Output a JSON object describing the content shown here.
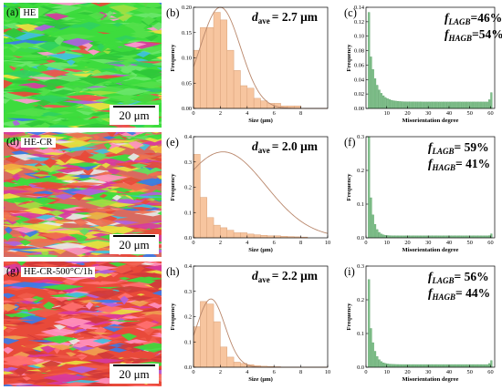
{
  "maps": [
    {
      "panel": "(a)",
      "name": "HE",
      "scale": "20 μm",
      "seed": 11,
      "tone": "green"
    },
    {
      "panel": "(d)",
      "name": "HE-CR",
      "scale": "20 μm",
      "seed": 37,
      "tone": "mixed"
    },
    {
      "panel": "(g)",
      "name": "HE-CR-500°C/1h",
      "scale": "20 μm",
      "seed": 73,
      "tone": "red"
    }
  ],
  "colors": {
    "size_bar": "#f7c59f",
    "size_bar_edge": "#d9a27a",
    "size_curve": "#b9876b",
    "mis_bar": "#7fbf8a",
    "mis_bar_edge": "#4f9a5e"
  },
  "chart_data": [
    {
      "type": "bar",
      "panel": "(b)",
      "xlabel": "Size (μm)",
      "ylabel": "Frequency",
      "annotation": {
        "var": "d",
        "sub": "ave",
        "value": "= 2.7 μm"
      },
      "xlim": [
        0,
        10
      ],
      "ylim": [
        0,
        0.2
      ],
      "xticks": [
        0,
        2,
        4,
        6,
        8
      ],
      "yticks": [
        0.0,
        0.05,
        0.1,
        0.15,
        0.2
      ],
      "bin_width": 0.5,
      "values": [
        0.115,
        0.16,
        0.16,
        0.19,
        0.175,
        0.115,
        0.075,
        0.045,
        0.04,
        0.02,
        0.015,
        0.01,
        0.01,
        0.005,
        0.005,
        0.005
      ],
      "fit": {
        "kind": "gaussian",
        "peak": 0.2,
        "center": 2.0,
        "sigma": 1.5
      }
    },
    {
      "type": "bar",
      "panel": "(c)",
      "xlabel": "Misorientation degree",
      "ylabel": "Frequency",
      "annotation": [
        {
          "var": "f",
          "sub": "LAGB",
          "value": "=46%"
        },
        {
          "var": "f",
          "sub": "HAGB",
          "value": "=54%"
        }
      ],
      "xlim": [
        0,
        62
      ],
      "ylim": [
        0,
        0.14
      ],
      "xticks": [
        10,
        20,
        30,
        40,
        50,
        60
      ],
      "yticks": [
        0.0,
        0.02,
        0.04,
        0.06,
        0.08,
        0.1,
        0.12,
        0.14
      ],
      "profile": {
        "first": 0.133,
        "decay_to": 0.009,
        "decay_rate": 0.33,
        "last": 0.022
      }
    },
    {
      "type": "bar",
      "panel": "(e)",
      "xlabel": "Size (μm)",
      "ylabel": "Frequency",
      "annotation": {
        "var": "d",
        "sub": "ave",
        "value": "= 2.0 μm"
      },
      "xlim": [
        0,
        10
      ],
      "ylim": [
        0,
        0.4
      ],
      "xticks": [
        0,
        2,
        4,
        6,
        8,
        10
      ],
      "yticks": [
        0.0,
        0.1,
        0.2,
        0.3,
        0.4
      ],
      "bin_width": 0.5,
      "values": [
        0.33,
        0.16,
        0.08,
        0.05,
        0.04,
        0.03,
        0.02,
        0.02,
        0.015,
        0.012,
        0.01,
        0.008,
        0.008,
        0.006,
        0.005,
        0.004,
        0.003
      ],
      "fit": {
        "kind": "gaussian",
        "peak": 0.34,
        "center": 2.2,
        "sigma": 3.2
      }
    },
    {
      "type": "bar",
      "panel": "(f)",
      "xlabel": "Misorientation degree",
      "ylabel": "Frequency",
      "annotation": [
        {
          "var": "f",
          "sub": "LAGB",
          "value": "= 59%"
        },
        {
          "var": "f",
          "sub": "HAGB",
          "value": "= 41%"
        }
      ],
      "xlim": [
        0,
        62
      ],
      "ylim": [
        0,
        0.3
      ],
      "xticks": [
        0,
        10,
        20,
        30,
        40,
        50,
        60
      ],
      "yticks": [
        0.0,
        0.1,
        0.2,
        0.3
      ],
      "profile": {
        "first": 0.3,
        "decay_to": 0.006,
        "decay_rate": 0.6,
        "last": 0.012
      }
    },
    {
      "type": "bar",
      "panel": "(h)",
      "xlabel": "Size (μm)",
      "ylabel": "Frequency",
      "annotation": {
        "var": "d",
        "sub": "ave",
        "value": "= 2.2 μm"
      },
      "xlim": [
        0,
        10
      ],
      "ylim": [
        0,
        0.4
      ],
      "xticks": [
        0,
        2,
        4,
        6,
        8,
        10
      ],
      "yticks": [
        0.0,
        0.1,
        0.2,
        0.3,
        0.4
      ],
      "bin_width": 0.5,
      "values": [
        0.16,
        0.26,
        0.25,
        0.18,
        0.08,
        0.04,
        0.02,
        0.015,
        0.01,
        0.006,
        0.004,
        0.003,
        0.002
      ],
      "fit": {
        "kind": "gaussian",
        "peak": 0.27,
        "center": 1.3,
        "sigma": 1.05
      }
    },
    {
      "type": "bar",
      "panel": "(i)",
      "xlabel": "Misorientation degree",
      "ylabel": "Frequency",
      "annotation": [
        {
          "var": "f",
          "sub": "LAGB",
          "value": "= 56%"
        },
        {
          "var": "f",
          "sub": "HAGB",
          "value": "= 44%"
        }
      ],
      "xlim": [
        0,
        62
      ],
      "ylim": [
        0,
        0.3
      ],
      "xticks": [
        0,
        10,
        20,
        30,
        40,
        50,
        60
      ],
      "yticks": [
        0.0,
        0.1,
        0.2,
        0.3
      ],
      "profile": {
        "first": 0.26,
        "decay_to": 0.008,
        "decay_rate": 0.5,
        "last": 0.02
      }
    }
  ]
}
